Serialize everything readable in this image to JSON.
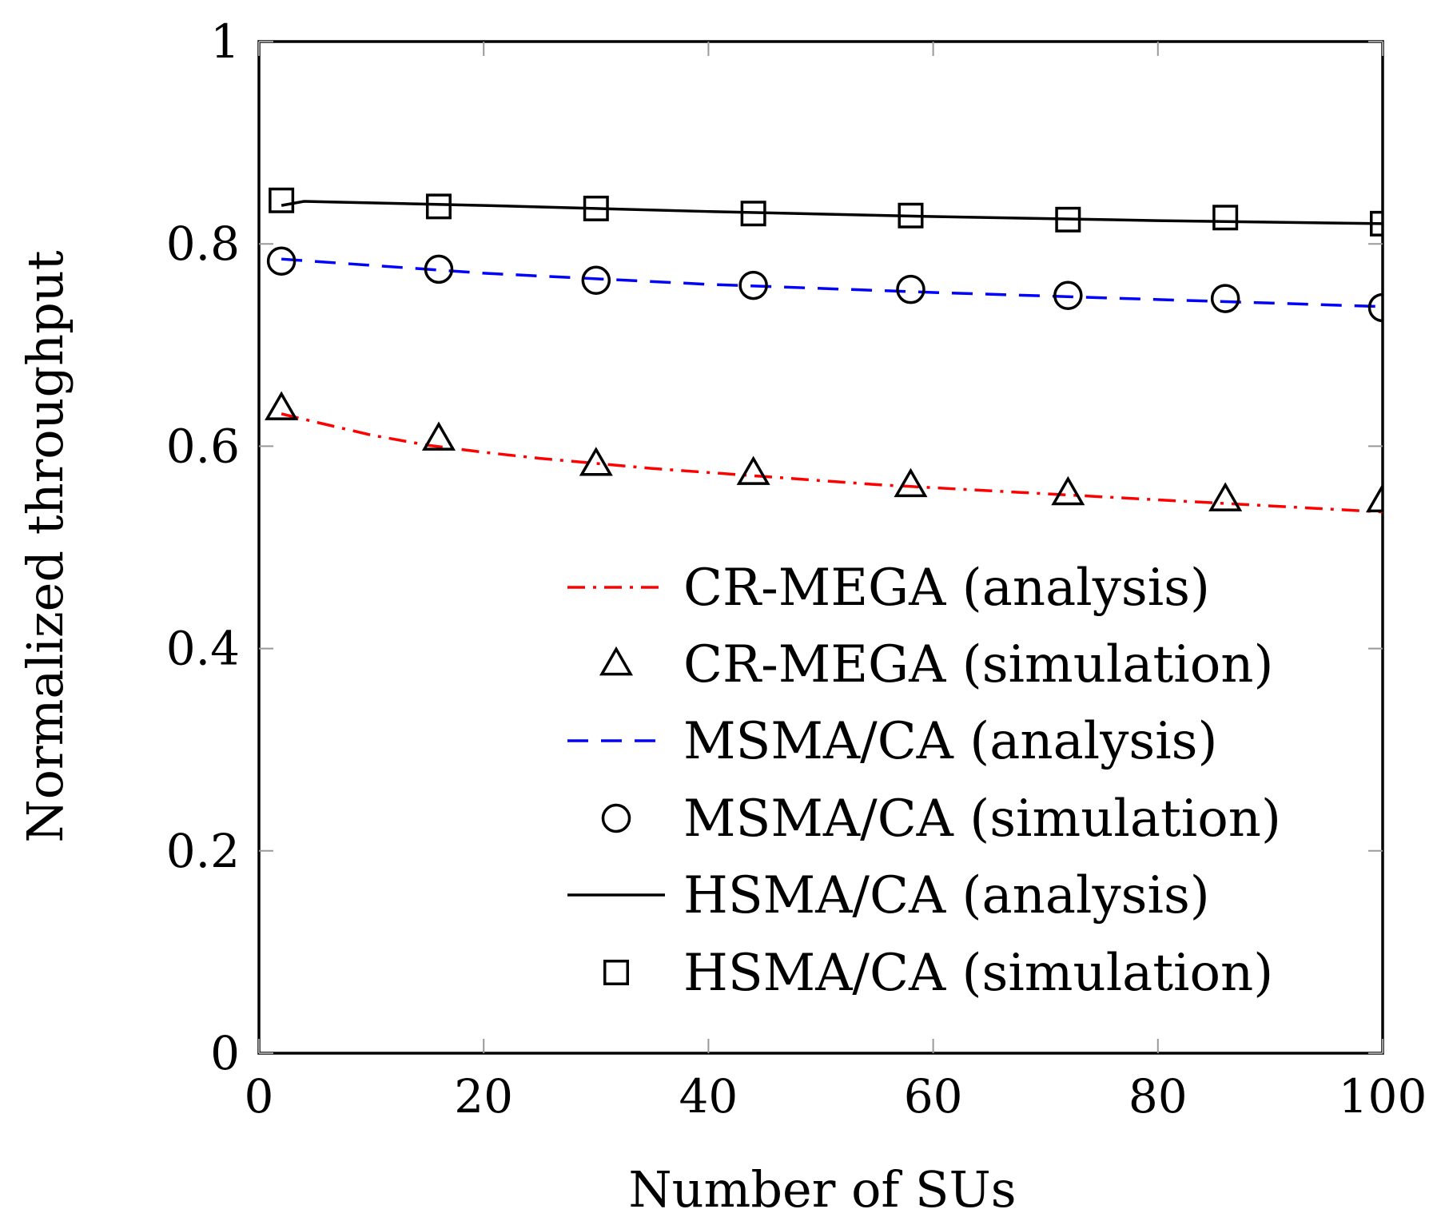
{
  "chart_data": {
    "type": "line",
    "title": "",
    "xlabel": "Number of SUs",
    "ylabel": "Normalized throughput",
    "xlim": [
      0,
      100
    ],
    "ylim": [
      0,
      1
    ],
    "xticks": [
      0,
      20,
      40,
      60,
      80,
      100
    ],
    "yticks": [
      0,
      0.2,
      0.4,
      0.6,
      0.8,
      1
    ],
    "xtick_labels": [
      "0",
      "20",
      "40",
      "60",
      "80",
      "100"
    ],
    "ytick_labels": [
      "0",
      "0.2",
      "0.4",
      "0.6",
      "0.8",
      "1"
    ],
    "grid": false,
    "legend_position": "bottom-right",
    "series": [
      {
        "name": "CR-MEGA (analysis)",
        "style": "dash-dot",
        "color": "#ff0000",
        "x": [
          2,
          5,
          10,
          15,
          20,
          25,
          30,
          35,
          40,
          45,
          50,
          55,
          60,
          65,
          70,
          75,
          80,
          85,
          90,
          95,
          100
        ],
        "y": [
          0.632,
          0.624,
          0.611,
          0.601,
          0.594,
          0.588,
          0.583,
          0.578,
          0.574,
          0.57,
          0.566,
          0.562,
          0.559,
          0.556,
          0.553,
          0.55,
          0.547,
          0.544,
          0.541,
          0.538,
          0.535
        ]
      },
      {
        "name": "CR-MEGA (simulation)",
        "marker": "triangle",
        "color": "#000000",
        "x": [
          2,
          16,
          30,
          44,
          58,
          72,
          86,
          100
        ],
        "y": [
          0.637,
          0.607,
          0.582,
          0.573,
          0.561,
          0.553,
          0.547,
          0.546
        ]
      },
      {
        "name": "MSMA/CA (analysis)",
        "style": "dashed",
        "color": "#0000ff",
        "x": [
          2,
          20,
          40,
          60,
          80,
          100
        ],
        "y": [
          0.785,
          0.771,
          0.76,
          0.752,
          0.745,
          0.738
        ]
      },
      {
        "name": "MSMA/CA (simulation)",
        "marker": "circle",
        "color": "#000000",
        "x": [
          2,
          16,
          30,
          44,
          58,
          72,
          86,
          100
        ],
        "y": [
          0.783,
          0.775,
          0.764,
          0.759,
          0.755,
          0.749,
          0.746,
          0.737
        ]
      },
      {
        "name": "HSMA/CA (analysis)",
        "style": "solid",
        "color": "#000000",
        "x": [
          2,
          4,
          20,
          40,
          60,
          80,
          100
        ],
        "y": [
          0.838,
          0.842,
          0.838,
          0.832,
          0.827,
          0.823,
          0.82
        ]
      },
      {
        "name": "HSMA/CA (simulation)",
        "marker": "square",
        "color": "#000000",
        "x": [
          2,
          16,
          30,
          44,
          58,
          72,
          86,
          100
        ],
        "y": [
          0.843,
          0.837,
          0.835,
          0.83,
          0.828,
          0.824,
          0.826,
          0.82
        ]
      }
    ]
  }
}
